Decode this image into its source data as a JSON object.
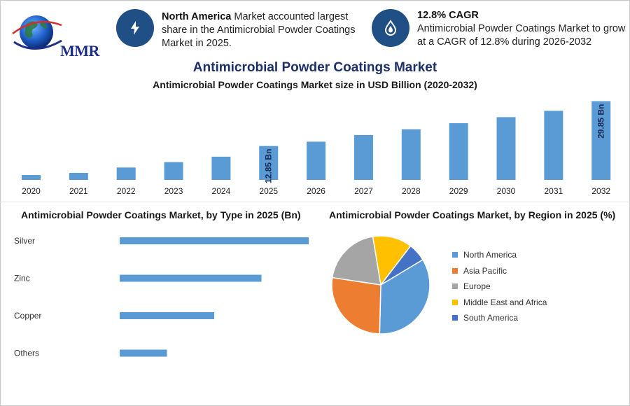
{
  "header": {
    "logo_text": "MMR",
    "stat1": {
      "bold": "North America",
      "text": " Market accounted largest share in the Antimicrobial Powder Coatings Market in 2025.",
      "icon": "lightning-icon"
    },
    "stat2": {
      "bold": "12.8% CAGR",
      "text": "Antimicrobial Powder Coatings Market to grow at a CAGR of 12.8% during 2026-2032",
      "icon": "droplet-icon"
    }
  },
  "title": "Antimicrobial Powder Coatings Market",
  "colors": {
    "bar": "#5b9bd5",
    "title": "#1d2f6a",
    "badge": "#1f4f85"
  },
  "chart_data": [
    {
      "type": "bar",
      "title": "Antimicrobial Powder Coatings Market size in USD Billion (2020-2032)",
      "categories": [
        "2020",
        "2021",
        "2022",
        "2023",
        "2024",
        "2025",
        "2026",
        "2027",
        "2028",
        "2029",
        "2030",
        "2031",
        "2032"
      ],
      "values": [
        1.85,
        2.65,
        4.7,
        6.75,
        8.8,
        12.85,
        14.5,
        17.0,
        19.2,
        21.5,
        23.8,
        26.2,
        29.85
      ],
      "data_labels": {
        "2025": "12.85 Bn",
        "2032": "29.85 Bn"
      },
      "ylim": [
        0,
        30
      ]
    },
    {
      "type": "bar",
      "orientation": "horizontal",
      "title": "Antimicrobial Powder Coatings Market, by Type in 2025 (Bn)",
      "categories": [
        "Silver",
        "Zinc",
        "Copper",
        "Others"
      ],
      "values": [
        5.6,
        4.2,
        2.8,
        1.4
      ],
      "xlim": [
        0,
        5.6
      ]
    },
    {
      "type": "pie",
      "title": "Antimicrobial Powder Coatings Market, by Region in 2025 (%)",
      "series": [
        {
          "name": "North America",
          "value": 34,
          "color": "#5b9bd5"
        },
        {
          "name": "Asia Pacific",
          "value": 27,
          "color": "#ed7d31"
        },
        {
          "name": "Europe",
          "value": 20,
          "color": "#a5a5a5"
        },
        {
          "name": "Middle East and Africa",
          "value": 13,
          "color": "#ffc000"
        },
        {
          "name": "South America",
          "value": 6,
          "color": "#4472c4"
        }
      ],
      "legend": "right"
    }
  ]
}
